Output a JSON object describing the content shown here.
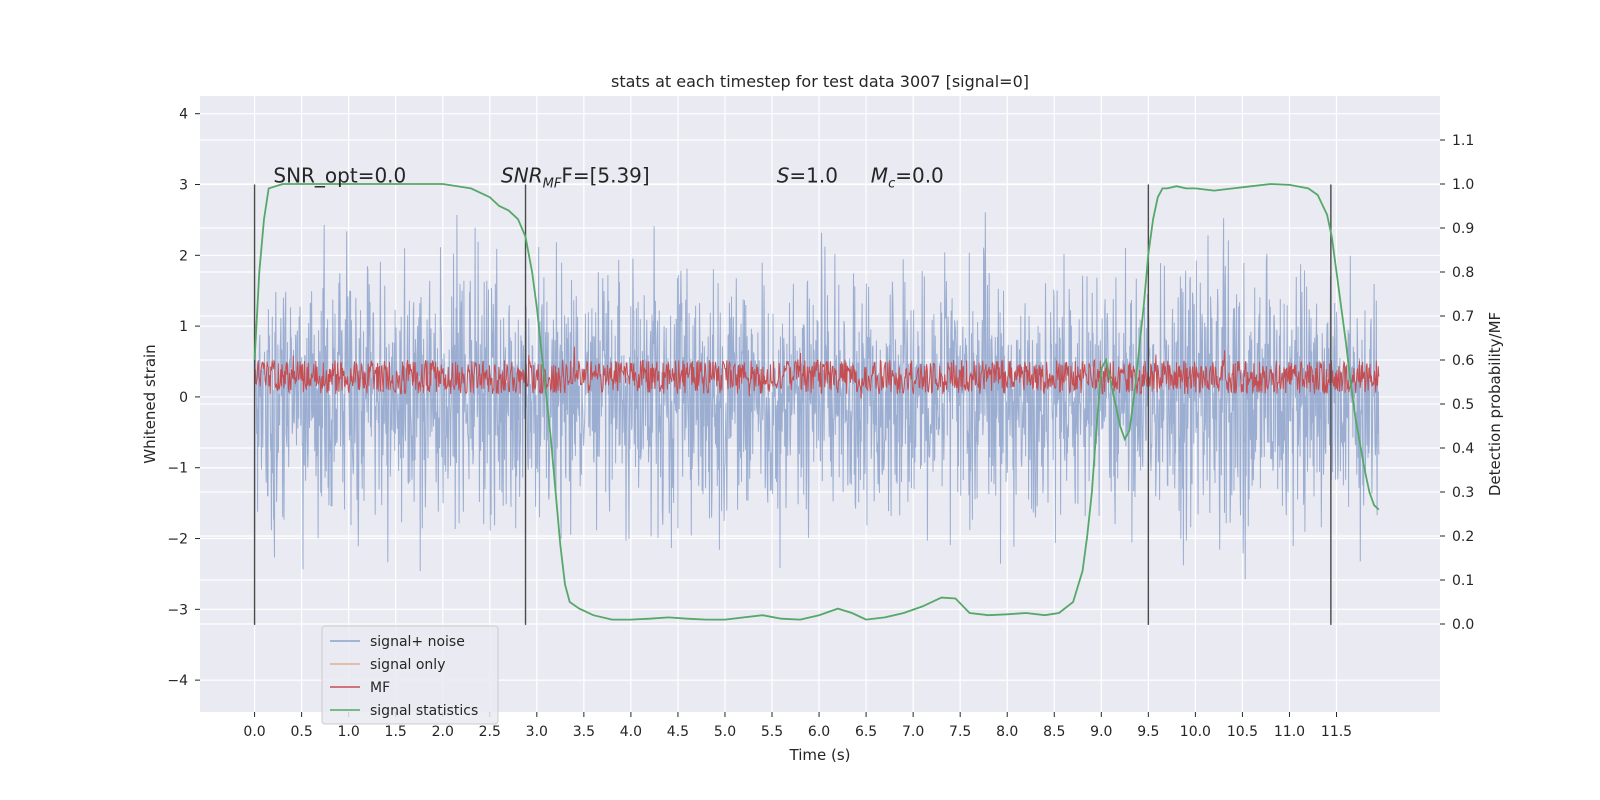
{
  "chart_data": {
    "type": "line",
    "title": "stats at each timestep for test data 3007 [signal=0]",
    "xlabel": "Time (s)",
    "ylabel_left": "Whitened strain",
    "ylabel_right": "Detection probability/MF",
    "xlim": [
      -0.58,
      12.6
    ],
    "ylim_left": [
      -4.45,
      4.25
    ],
    "ylim_right": [
      -0.2,
      1.2
    ],
    "grid": true,
    "x_ticks": [
      "0.0",
      "0.5",
      "1.0",
      "1.5",
      "2.0",
      "2.5",
      "3.0",
      "3.5",
      "4.0",
      "4.5",
      "5.0",
      "5.5",
      "6.0",
      "6.5",
      "7.0",
      "7.5",
      "8.0",
      "8.5",
      "9.0",
      "9.5",
      "10.0",
      "10.5",
      "11.0",
      "11.5"
    ],
    "y_ticks_left": [
      "4",
      "3",
      "2",
      "1",
      "0",
      "−1",
      "−2",
      "−3",
      "−4"
    ],
    "y_ticks_right": [
      "1.1",
      "1.0",
      "0.9",
      "0.8",
      "0.7",
      "0.6",
      "0.5",
      "0.4",
      "0.3",
      "0.2",
      "0.1",
      "0.0"
    ],
    "annotations": [
      {
        "text": "SNR_opt=0.0",
        "x": 0.2,
        "y": 3.0
      },
      {
        "text_main": "SNR",
        "text_sub": "MF",
        "text_rest": "F=[5.39]",
        "x": 2.62,
        "y": 3.0
      },
      {
        "text_main": "S",
        "text_rest": "=1.0",
        "x": 5.55,
        "y": 3.0
      },
      {
        "text_main": "M",
        "text_sub": "c",
        "text_rest": "=0.0",
        "x": 6.55,
        "y": 3.0
      }
    ],
    "vertical_markers_x": [
      0.0,
      2.88,
      9.5,
      11.44
    ],
    "vertical_marker_range": [
      -3.22,
      3.0
    ],
    "series": [
      {
        "name": "signal+ noise",
        "color": "#4c72b0",
        "noise_band_left": [
          -2.4,
          2.4
        ],
        "x_range": [
          0.0,
          11.95
        ]
      },
      {
        "name": "signal only",
        "color": "#dd8452",
        "values_left": 0.0
      },
      {
        "name": "MF",
        "color": "#c44e52",
        "band_left": [
          0.05,
          0.55
        ],
        "x_range": [
          0.0,
          11.95
        ]
      },
      {
        "name": "signal statistics",
        "color": "#55a868",
        "x": [
          0.0,
          0.05,
          0.1,
          0.15,
          0.3,
          0.6,
          1.0,
          1.5,
          2.0,
          2.3,
          2.5,
          2.6,
          2.7,
          2.8,
          2.88,
          2.95,
          3.0,
          3.05,
          3.1,
          3.15,
          3.2,
          3.25,
          3.3,
          3.35,
          3.45,
          3.6,
          3.8,
          4.0,
          4.2,
          4.4,
          4.6,
          4.8,
          5.0,
          5.2,
          5.4,
          5.6,
          5.8,
          6.0,
          6.2,
          6.35,
          6.5,
          6.7,
          6.9,
          7.1,
          7.3,
          7.45,
          7.6,
          7.8,
          8.0,
          8.2,
          8.4,
          8.55,
          8.7,
          8.8,
          8.85,
          8.9,
          8.95,
          9.0,
          9.05,
          9.1,
          9.15,
          9.2,
          9.25,
          9.3,
          9.35,
          9.4,
          9.45,
          9.5,
          9.55,
          9.6,
          9.65,
          9.7,
          9.8,
          9.9,
          10.0,
          10.2,
          10.4,
          10.6,
          10.8,
          11.0,
          11.2,
          11.3,
          11.4,
          11.45,
          11.5,
          11.55,
          11.6,
          11.65,
          11.7,
          11.75,
          11.8,
          11.85,
          11.9,
          11.95
        ],
        "values_right": [
          0.6,
          0.8,
          0.92,
          0.99,
          1.0,
          1.0,
          1.0,
          1.0,
          1.0,
          0.99,
          0.97,
          0.95,
          0.94,
          0.92,
          0.88,
          0.8,
          0.72,
          0.62,
          0.52,
          0.42,
          0.3,
          0.18,
          0.09,
          0.05,
          0.035,
          0.02,
          0.01,
          0.01,
          0.012,
          0.015,
          0.012,
          0.01,
          0.01,
          0.015,
          0.02,
          0.012,
          0.01,
          0.02,
          0.035,
          0.025,
          0.01,
          0.015,
          0.025,
          0.04,
          0.06,
          0.058,
          0.025,
          0.02,
          0.022,
          0.025,
          0.02,
          0.025,
          0.05,
          0.12,
          0.2,
          0.3,
          0.45,
          0.58,
          0.6,
          0.55,
          0.5,
          0.45,
          0.42,
          0.44,
          0.52,
          0.62,
          0.72,
          0.84,
          0.92,
          0.97,
          0.99,
          0.99,
          0.995,
          0.99,
          0.99,
          0.985,
          0.99,
          0.995,
          1.0,
          0.998,
          0.99,
          0.975,
          0.93,
          0.88,
          0.8,
          0.72,
          0.64,
          0.55,
          0.47,
          0.41,
          0.35,
          0.3,
          0.27,
          0.26
        ]
      }
    ],
    "legend_position": "lower-left"
  },
  "colors": {
    "plot_bg": "#eaeaf2",
    "grid": "#ffffff",
    "signal_noise": "#4c72b0",
    "signal_only": "#dd8452",
    "mf": "#c44e52",
    "signal_statistics": "#55a868",
    "marker": "#4a4a4a"
  }
}
